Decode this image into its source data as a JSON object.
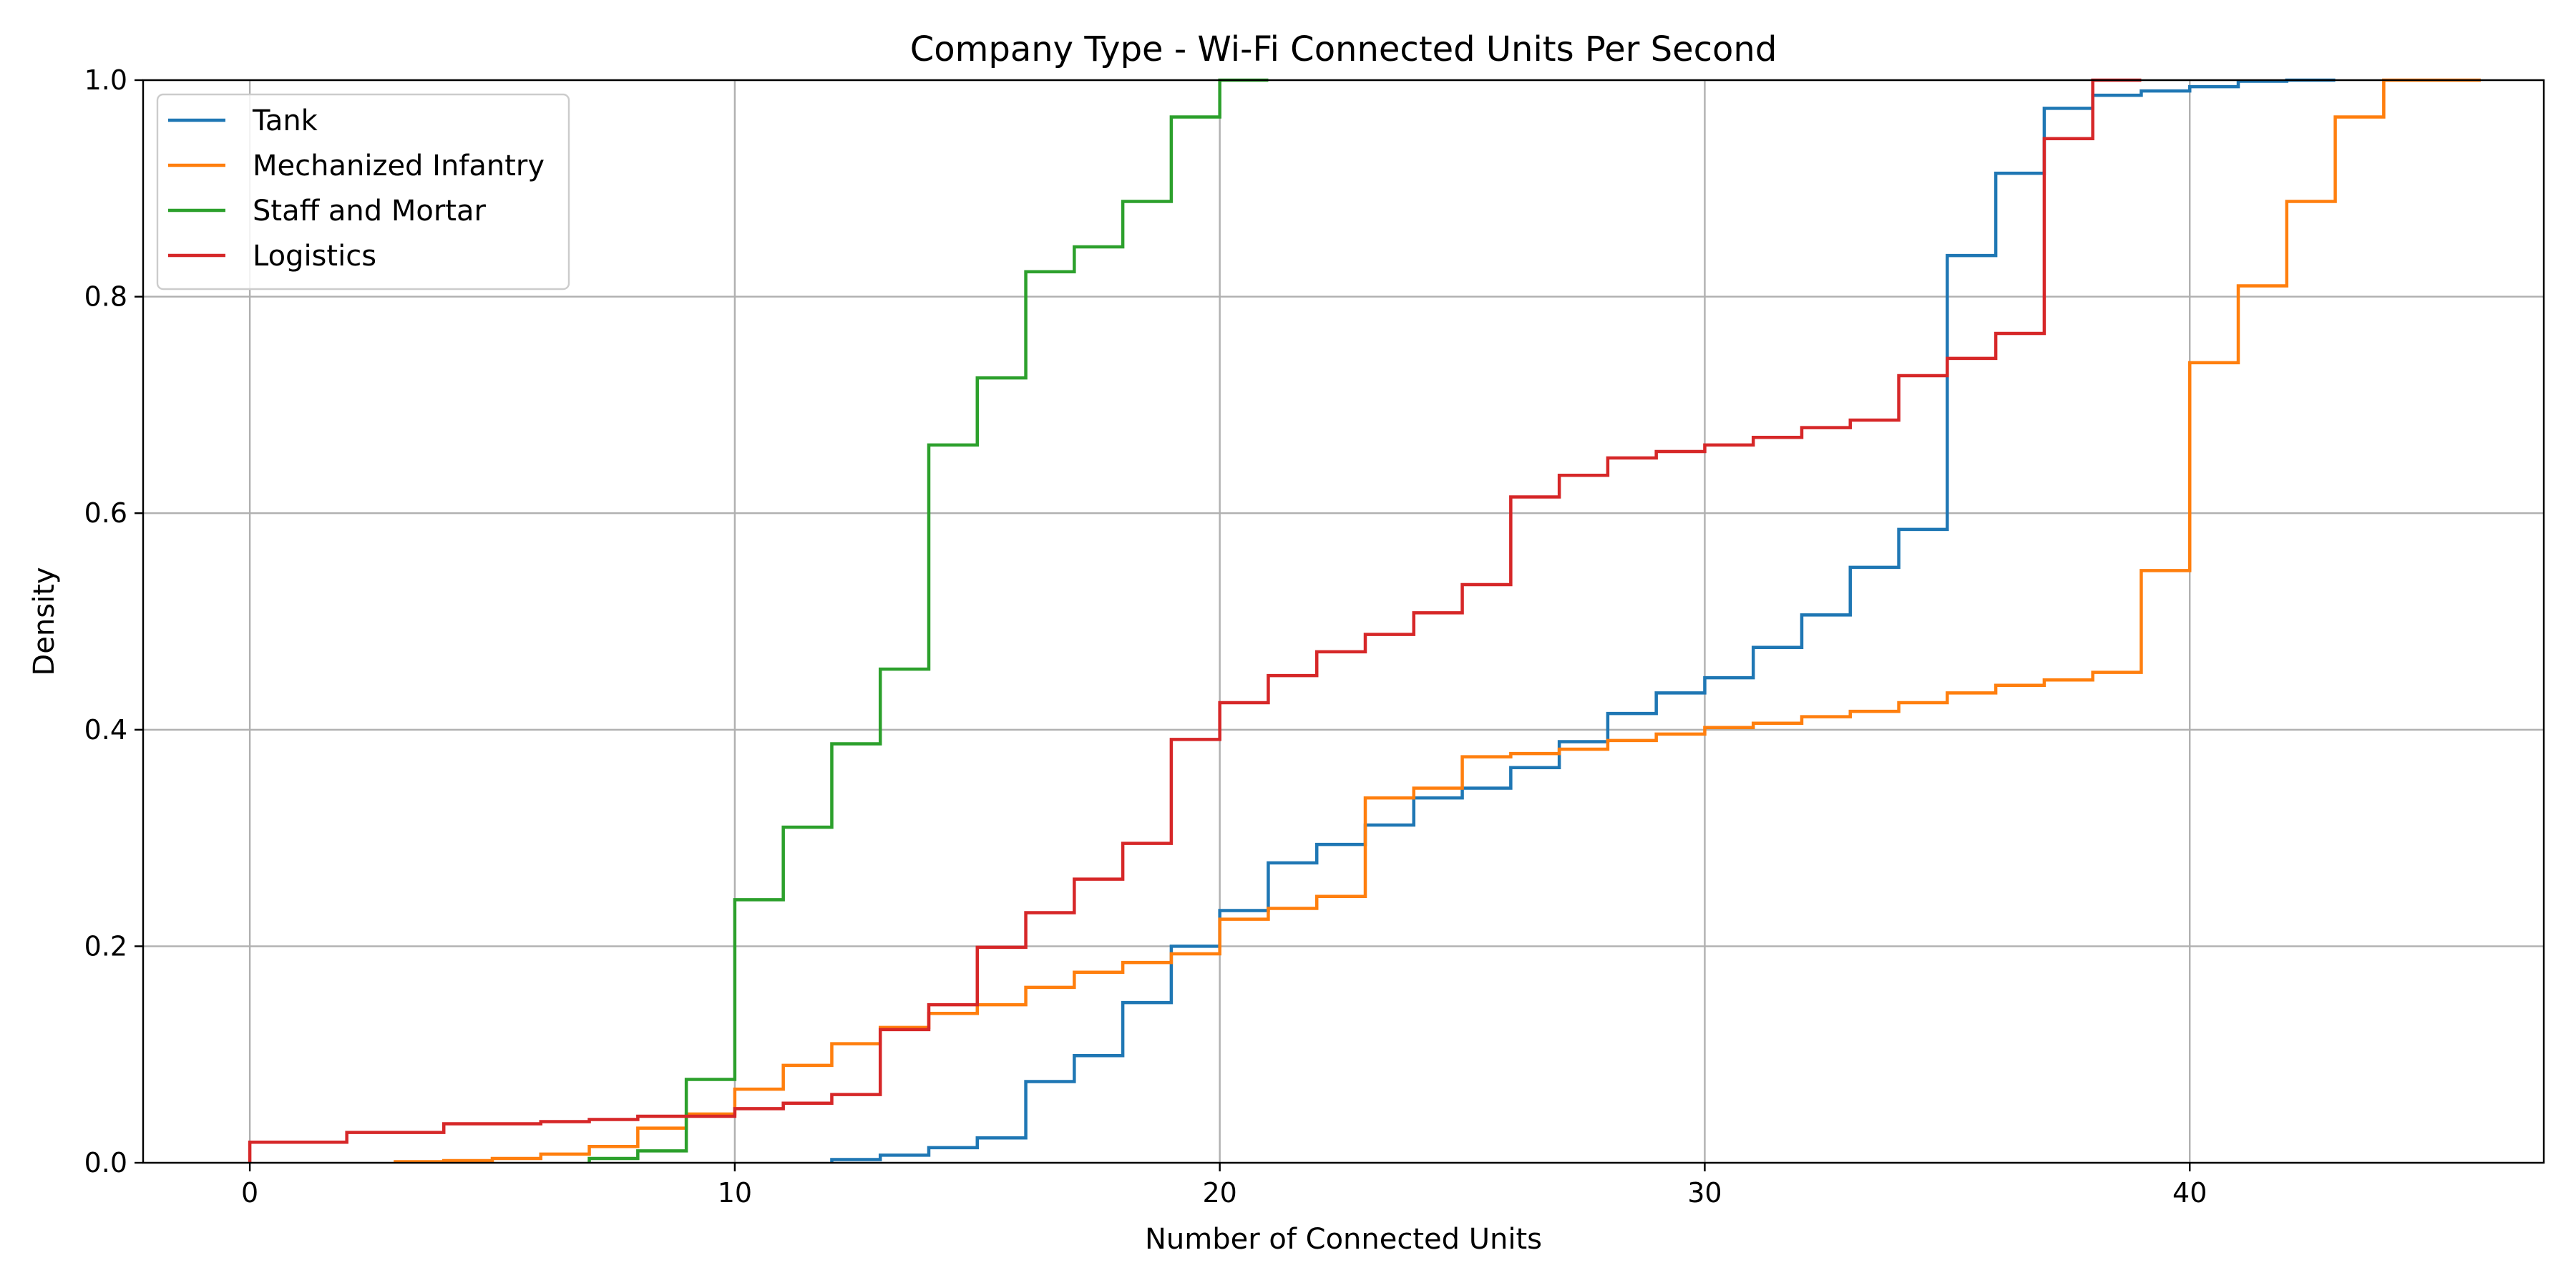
{
  "chart_data": {
    "type": "line",
    "step": "post",
    "title": "Company Type - Wi-Fi Connected Units Per Second",
    "xlabel": "Number of Connected Units",
    "ylabel": "Density",
    "xlim": [
      -2.2,
      47.3
    ],
    "ylim": [
      0,
      1
    ],
    "xticks": [
      0,
      10,
      20,
      30,
      40
    ],
    "yticks": [
      0,
      0.2,
      0.4,
      0.6,
      0.8,
      1
    ],
    "xtick_labels": [
      "0",
      "10",
      "20",
      "30",
      "40"
    ],
    "ytick_labels": [
      "0.0",
      "0.2",
      "0.4",
      "0.6",
      "0.8",
      "1.0"
    ],
    "grid": true,
    "legend_position": "top-left",
    "series": [
      {
        "name": "Tank",
        "color": "#1f77b4",
        "x": [
          12,
          13,
          14,
          15,
          16,
          17,
          18,
          19,
          20,
          21,
          22,
          23,
          24,
          25,
          26,
          27,
          28,
          29,
          30,
          31,
          32,
          33,
          34,
          35,
          36,
          37,
          38,
          39,
          40,
          41,
          42
        ],
        "y": [
          0.003,
          0.007,
          0.014,
          0.023,
          0.075,
          0.099,
          0.148,
          0.2,
          0.233,
          0.277,
          0.294,
          0.312,
          0.337,
          0.346,
          0.365,
          0.389,
          0.415,
          0.434,
          0.448,
          0.476,
          0.506,
          0.55,
          0.585,
          0.838,
          0.914,
          0.974,
          0.986,
          0.99,
          0.994,
          0.999,
          1.0
        ]
      },
      {
        "name": "Mechanized Infantry",
        "color": "#ff7f0e",
        "x": [
          3,
          4,
          5,
          6,
          7,
          8,
          9,
          10,
          11,
          12,
          13,
          14,
          15,
          16,
          17,
          18,
          19,
          20,
          21,
          22,
          23,
          24,
          25,
          26,
          27,
          28,
          29,
          30,
          31,
          32,
          33,
          34,
          35,
          36,
          37,
          38,
          39,
          40,
          41,
          42,
          43,
          44,
          45
        ],
        "y": [
          0.001,
          0.002,
          0.004,
          0.008,
          0.015,
          0.032,
          0.045,
          0.068,
          0.09,
          0.11,
          0.125,
          0.138,
          0.146,
          0.162,
          0.176,
          0.185,
          0.193,
          0.225,
          0.235,
          0.246,
          0.337,
          0.346,
          0.375,
          0.378,
          0.382,
          0.39,
          0.396,
          0.402,
          0.406,
          0.412,
          0.417,
          0.425,
          0.434,
          0.441,
          0.446,
          0.453,
          0.547,
          0.739,
          0.81,
          0.888,
          0.966,
          1.0,
          1.0
        ]
      },
      {
        "name": "Staff and Mortar",
        "color": "#2ca02c",
        "x": [
          7,
          8,
          9,
          10,
          11,
          12,
          13,
          14,
          15,
          16,
          17,
          18,
          19,
          20
        ],
        "y": [
          0.004,
          0.011,
          0.077,
          0.243,
          0.31,
          0.387,
          0.456,
          0.663,
          0.725,
          0.823,
          0.846,
          0.888,
          0.966,
          1.0
        ]
      },
      {
        "name": "Logistics",
        "color": "#d62728",
        "x": [
          0,
          2,
          4,
          6,
          7,
          8,
          10,
          11,
          12,
          13,
          14,
          15,
          16,
          17,
          18,
          19,
          20,
          21,
          22,
          23,
          24,
          25,
          26,
          27,
          28,
          29,
          30,
          31,
          32,
          33,
          34,
          35,
          36,
          37,
          38
        ],
        "y": [
          0.019,
          0.028,
          0.036,
          0.038,
          0.04,
          0.043,
          0.05,
          0.055,
          0.063,
          0.123,
          0.146,
          0.199,
          0.231,
          0.262,
          0.295,
          0.391,
          0.425,
          0.45,
          0.472,
          0.488,
          0.508,
          0.534,
          0.615,
          0.635,
          0.651,
          0.657,
          0.663,
          0.67,
          0.679,
          0.686,
          0.727,
          0.743,
          0.766,
          0.946,
          1.0
        ]
      }
    ]
  }
}
